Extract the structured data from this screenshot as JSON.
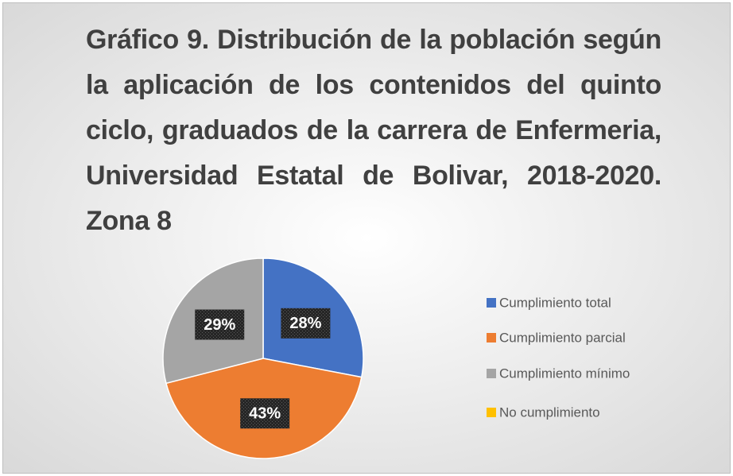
{
  "chart_data": {
    "type": "pie",
    "title": "Gráfico 9. Distribución de la población según la aplicación de los contenidos del quinto ciclo, graduados de la carrera de Enfermeria, Universidad Estatal de Bolivar,  2018-2020. Zona 8",
    "categories": [
      "Cumplimiento total",
      "Cumplimiento parcial",
      "Cumplimiento mínimo",
      "No cumplimiento"
    ],
    "values": [
      28,
      43,
      29,
      0
    ],
    "value_labels": [
      "28%",
      "43%",
      "29%",
      null
    ],
    "colors": [
      "#4472c4",
      "#ed7d31",
      "#a5a5a5",
      "#ffc000"
    ],
    "legend": "right"
  }
}
